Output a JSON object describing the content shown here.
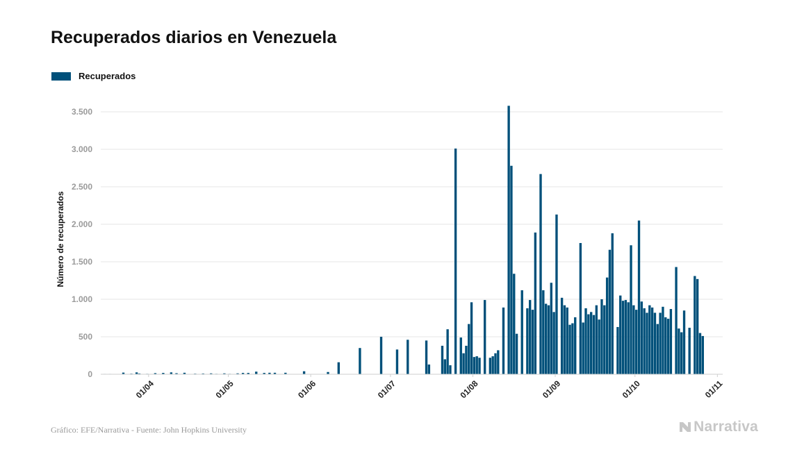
{
  "title": "Recuperados diarios en Venezuela",
  "source": "Gráfico: EFE/Narrativa - Fuente: John Hopkins University",
  "logo_text": "Narrativa",
  "colors": {
    "bar": "#00507a",
    "grid": "#e6e6e6",
    "tick": "#9a9a9a"
  },
  "chart_data": {
    "type": "bar",
    "title": "Recuperados diarios en Venezuela",
    "ylabel": "Número de recuperados",
    "xlabel": "",
    "legend": "top-left",
    "grid": true,
    "ylim": [
      0,
      3500
    ],
    "yticks": [
      0,
      500,
      1000,
      1500,
      2000,
      2500,
      3000,
      3500
    ],
    "ytick_labels": [
      "0",
      "500",
      "1.000",
      "1.500",
      "2.000",
      "2.500",
      "3.000",
      "3.500"
    ],
    "xticks": [
      "2020-04-01",
      "2020-05-01",
      "2020-06-01",
      "2020-07-01",
      "2020-08-01",
      "2020-09-01",
      "2020-10-01",
      "2020-11-01"
    ],
    "xtick_labels": [
      "01/04",
      "01/05",
      "01/06",
      "01/07",
      "01/08",
      "01/09",
      "01/10",
      "01/11"
    ],
    "xlim": [
      "2020-03-14",
      "2020-11-03"
    ],
    "series": [
      {
        "name": "Recuperados",
        "points": [
          [
            "2020-03-15",
            5
          ],
          [
            "2020-03-17",
            5
          ],
          [
            "2020-03-19",
            3
          ],
          [
            "2020-03-22",
            22
          ],
          [
            "2020-03-25",
            8
          ],
          [
            "2020-03-27",
            25
          ],
          [
            "2020-03-28",
            10
          ],
          [
            "2020-03-31",
            6
          ],
          [
            "2020-04-03",
            15
          ],
          [
            "2020-04-06",
            18
          ],
          [
            "2020-04-09",
            25
          ],
          [
            "2020-04-11",
            14
          ],
          [
            "2020-04-14",
            20
          ],
          [
            "2020-04-18",
            8
          ],
          [
            "2020-04-21",
            10
          ],
          [
            "2020-04-24",
            12
          ],
          [
            "2020-04-26",
            6
          ],
          [
            "2020-04-29",
            12
          ],
          [
            "2020-05-01",
            6
          ],
          [
            "2020-05-04",
            12
          ],
          [
            "2020-05-06",
            18
          ],
          [
            "2020-05-08",
            18
          ],
          [
            "2020-05-11",
            35
          ],
          [
            "2020-05-14",
            18
          ],
          [
            "2020-05-16",
            20
          ],
          [
            "2020-05-18",
            20
          ],
          [
            "2020-05-22",
            20
          ],
          [
            "2020-05-29",
            40
          ],
          [
            "2020-06-07",
            30
          ],
          [
            "2020-06-11",
            160
          ],
          [
            "2020-06-19",
            350
          ],
          [
            "2020-06-27",
            500
          ],
          [
            "2020-07-03",
            330
          ],
          [
            "2020-07-07",
            460
          ],
          [
            "2020-07-14",
            450
          ],
          [
            "2020-07-15",
            130
          ],
          [
            "2020-07-20",
            380
          ],
          [
            "2020-07-21",
            200
          ],
          [
            "2020-07-22",
            600
          ],
          [
            "2020-07-23",
            120
          ],
          [
            "2020-07-25",
            3010
          ],
          [
            "2020-07-27",
            490
          ],
          [
            "2020-07-28",
            280
          ],
          [
            "2020-07-29",
            380
          ],
          [
            "2020-07-30",
            670
          ],
          [
            "2020-07-31",
            960
          ],
          [
            "2020-08-01",
            230
          ],
          [
            "2020-08-02",
            240
          ],
          [
            "2020-08-03",
            220
          ],
          [
            "2020-08-05",
            990
          ],
          [
            "2020-08-07",
            220
          ],
          [
            "2020-08-08",
            240
          ],
          [
            "2020-08-09",
            280
          ],
          [
            "2020-08-10",
            320
          ],
          [
            "2020-08-12",
            890
          ],
          [
            "2020-08-14",
            3580
          ],
          [
            "2020-08-15",
            2780
          ],
          [
            "2020-08-16",
            1340
          ],
          [
            "2020-08-17",
            540
          ],
          [
            "2020-08-19",
            1120
          ],
          [
            "2020-08-21",
            880
          ],
          [
            "2020-08-22",
            990
          ],
          [
            "2020-08-23",
            860
          ],
          [
            "2020-08-24",
            1890
          ],
          [
            "2020-08-26",
            2670
          ],
          [
            "2020-08-27",
            1120
          ],
          [
            "2020-08-28",
            940
          ],
          [
            "2020-08-29",
            920
          ],
          [
            "2020-08-30",
            1220
          ],
          [
            "2020-08-31",
            830
          ],
          [
            "2020-09-01",
            2130
          ],
          [
            "2020-09-03",
            1020
          ],
          [
            "2020-09-04",
            920
          ],
          [
            "2020-09-05",
            890
          ],
          [
            "2020-09-06",
            660
          ],
          [
            "2020-09-07",
            680
          ],
          [
            "2020-09-08",
            760
          ],
          [
            "2020-09-10",
            1750
          ],
          [
            "2020-09-11",
            690
          ],
          [
            "2020-09-12",
            880
          ],
          [
            "2020-09-13",
            800
          ],
          [
            "2020-09-14",
            830
          ],
          [
            "2020-09-15",
            790
          ],
          [
            "2020-09-16",
            920
          ],
          [
            "2020-09-17",
            730
          ],
          [
            "2020-09-18",
            1000
          ],
          [
            "2020-09-19",
            920
          ],
          [
            "2020-09-20",
            1290
          ],
          [
            "2020-09-21",
            1660
          ],
          [
            "2020-09-22",
            1880
          ],
          [
            "2020-09-24",
            630
          ],
          [
            "2020-09-25",
            1050
          ],
          [
            "2020-09-26",
            980
          ],
          [
            "2020-09-27",
            990
          ],
          [
            "2020-09-28",
            960
          ],
          [
            "2020-09-29",
            1720
          ],
          [
            "2020-09-30",
            920
          ],
          [
            "2020-10-01",
            860
          ],
          [
            "2020-10-02",
            2050
          ],
          [
            "2020-10-03",
            970
          ],
          [
            "2020-10-04",
            880
          ],
          [
            "2020-10-05",
            820
          ],
          [
            "2020-10-06",
            920
          ],
          [
            "2020-10-07",
            890
          ],
          [
            "2020-10-08",
            820
          ],
          [
            "2020-10-09",
            670
          ],
          [
            "2020-10-10",
            820
          ],
          [
            "2020-10-11",
            900
          ],
          [
            "2020-10-12",
            760
          ],
          [
            "2020-10-13",
            740
          ],
          [
            "2020-10-14",
            870
          ],
          [
            "2020-10-16",
            1430
          ],
          [
            "2020-10-17",
            610
          ],
          [
            "2020-10-18",
            560
          ],
          [
            "2020-10-19",
            850
          ],
          [
            "2020-10-21",
            620
          ],
          [
            "2020-10-23",
            1310
          ],
          [
            "2020-10-24",
            1270
          ],
          [
            "2020-10-25",
            550
          ],
          [
            "2020-10-26",
            510
          ]
        ]
      }
    ]
  }
}
